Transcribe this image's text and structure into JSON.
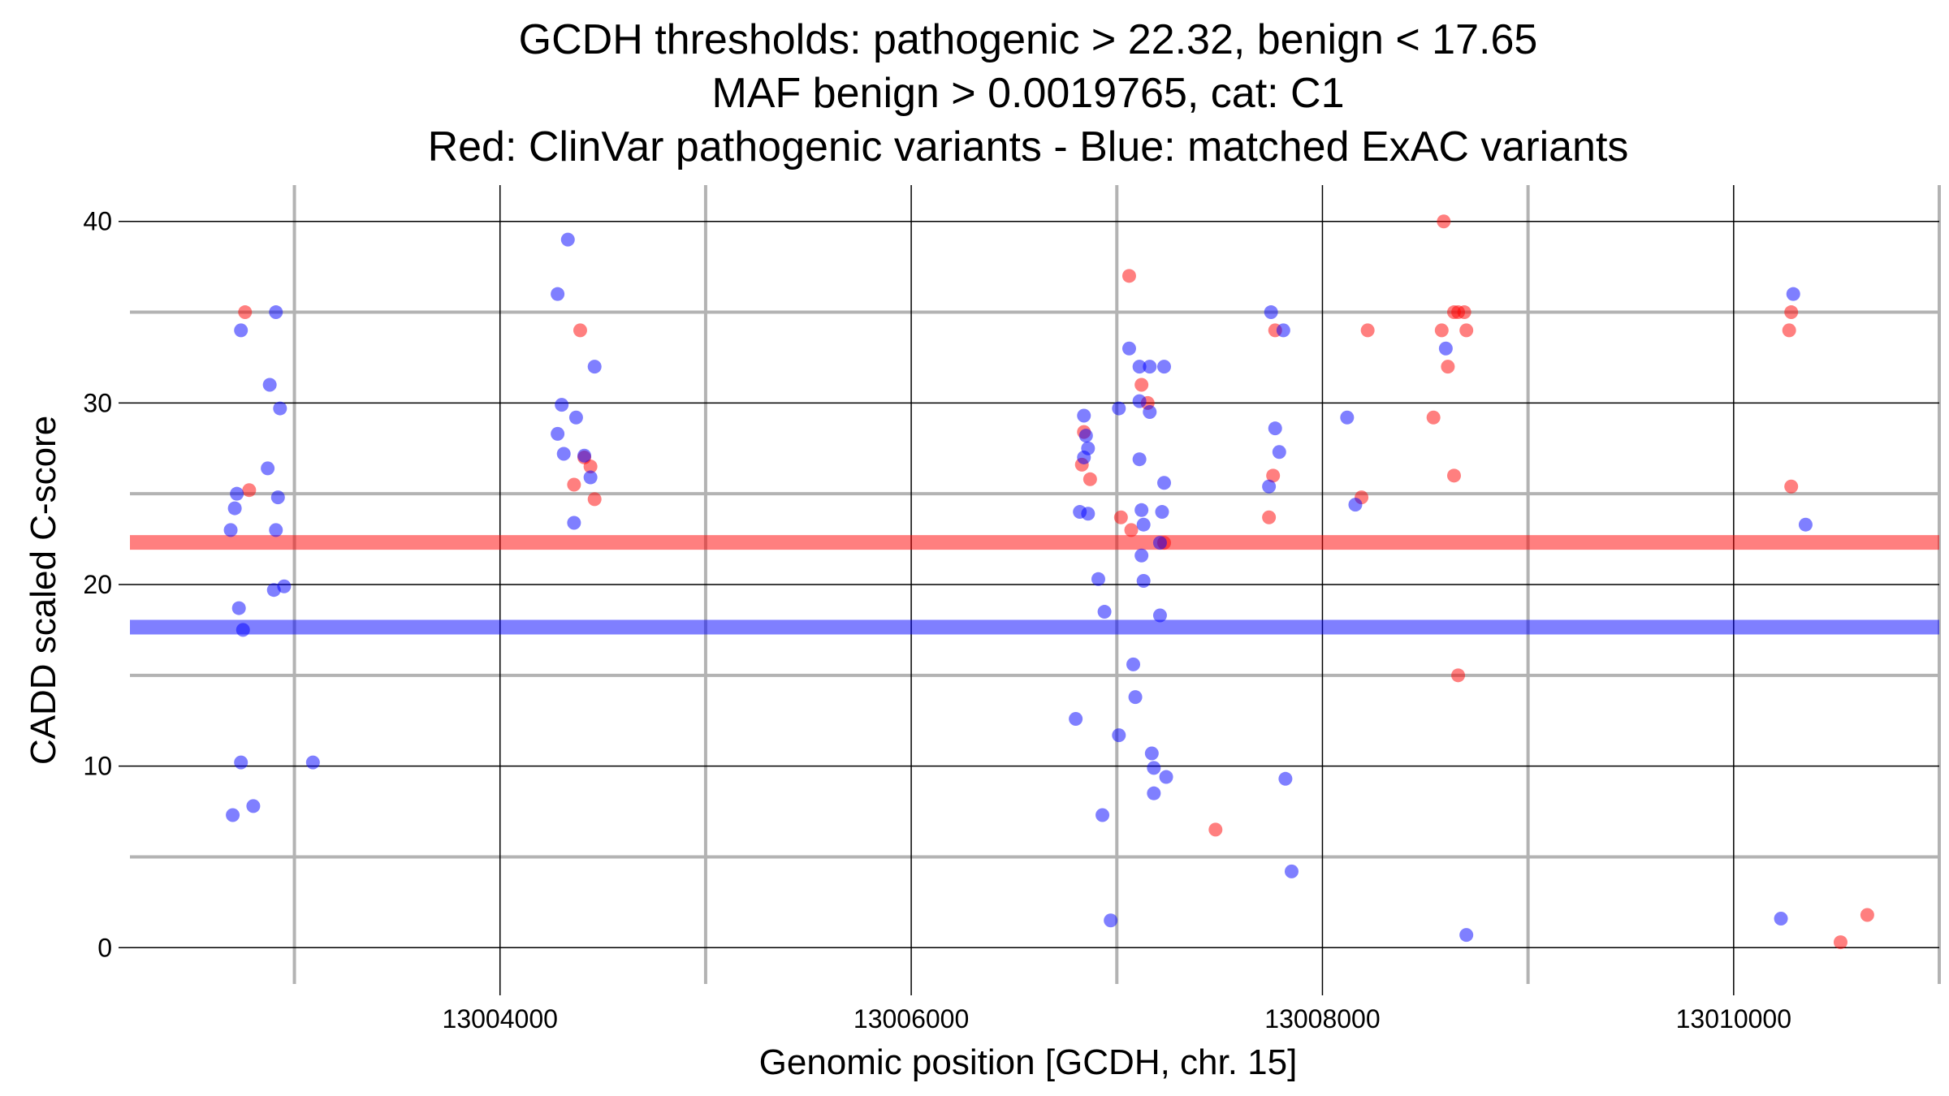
{
  "chart_data": {
    "type": "scatter",
    "title_lines": [
      "GCDH thresholds: pathogenic > 22.32, benign < 17.65",
      "MAF benign > 0.0019765, cat: C1",
      "Red: ClinVar pathogenic variants - Blue: matched ExAC variants"
    ],
    "xlabel": "Genomic position [GCDH, chr. 15]",
    "ylabel": "CADD scaled C-score",
    "xlim": [
      13002200,
      13011000
    ],
    "ylim": [
      -2.0,
      42.0
    ],
    "x_major_ticks": [
      13004000,
      13006000,
      13008000,
      13010000
    ],
    "x_tick_labels": [
      "13004000",
      "13006000",
      "13008000",
      "13010000"
    ],
    "x_minor_ticks": [
      13003000,
      13005000,
      13007000,
      13009000,
      13011000
    ],
    "y_major_ticks": [
      0,
      10,
      20,
      30,
      40
    ],
    "y_tick_labels": [
      "0",
      "10",
      "20",
      "30",
      "40"
    ],
    "y_minor_ticks": [
      5,
      15,
      25,
      35
    ],
    "grid": true,
    "thresholds": [
      {
        "name": "pathogenic",
        "value": 22.32,
        "color": "#ff0000"
      },
      {
        "name": "benign",
        "value": 17.65,
        "color": "#0000ff"
      }
    ],
    "series": [
      {
        "name": "ClinVar pathogenic variants",
        "color": "#ff0000",
        "points": [
          [
            13002760,
            35.0
          ],
          [
            13002780,
            25.2
          ],
          [
            13004390,
            34.0
          ],
          [
            13004360,
            25.5
          ],
          [
            13004410,
            27.0
          ],
          [
            13004440,
            26.5
          ],
          [
            13004460,
            24.7
          ],
          [
            13007060,
            37.0
          ],
          [
            13006840,
            28.4
          ],
          [
            13006830,
            26.6
          ],
          [
            13006870,
            25.8
          ],
          [
            13007020,
            23.7
          ],
          [
            13007070,
            23.0
          ],
          [
            13007120,
            31.0
          ],
          [
            13007150,
            30.0
          ],
          [
            13007230,
            22.3
          ],
          [
            13007480,
            6.5
          ],
          [
            13007740,
            23.7
          ],
          [
            13007760,
            26.0
          ],
          [
            13007770,
            34.0
          ],
          [
            13008190,
            24.8
          ],
          [
            13008220,
            34.0
          ],
          [
            13008540,
            29.2
          ],
          [
            13008580,
            34.0
          ],
          [
            13008590,
            40.0
          ],
          [
            13008610,
            32.0
          ],
          [
            13008640,
            35.0
          ],
          [
            13008660,
            35.0
          ],
          [
            13008690,
            35.0
          ],
          [
            13008700,
            34.0
          ],
          [
            13008640,
            26.0
          ],
          [
            13008660,
            15.0
          ],
          [
            13010280,
            35.0
          ],
          [
            13010270,
            34.0
          ],
          [
            13010280,
            25.4
          ],
          [
            13010520,
            0.3
          ],
          [
            13010650,
            1.8
          ]
        ]
      },
      {
        "name": "matched ExAC variants",
        "color": "#0000ff",
        "points": [
          [
            13002690,
            23.0
          ],
          [
            13002710,
            24.2
          ],
          [
            13002720,
            25.0
          ],
          [
            13002740,
            34.0
          ],
          [
            13002730,
            18.7
          ],
          [
            13002750,
            17.5
          ],
          [
            13002740,
            10.2
          ],
          [
            13002700,
            7.3
          ],
          [
            13002800,
            7.8
          ],
          [
            13002880,
            31.0
          ],
          [
            13002870,
            26.4
          ],
          [
            13002910,
            35.0
          ],
          [
            13002930,
            29.7
          ],
          [
            13002920,
            24.8
          ],
          [
            13002910,
            23.0
          ],
          [
            13002900,
            19.7
          ],
          [
            13002950,
            19.9
          ],
          [
            13003090,
            10.2
          ],
          [
            13004280,
            36.0
          ],
          [
            13004330,
            39.0
          ],
          [
            13004300,
            29.9
          ],
          [
            13004370,
            29.2
          ],
          [
            13004280,
            28.3
          ],
          [
            13004310,
            27.2
          ],
          [
            13004410,
            27.1
          ],
          [
            13004440,
            25.9
          ],
          [
            13004460,
            32.0
          ],
          [
            13004360,
            23.4
          ],
          [
            13006840,
            29.3
          ],
          [
            13006850,
            28.2
          ],
          [
            13006860,
            27.5
          ],
          [
            13006840,
            27.0
          ],
          [
            13006820,
            24.0
          ],
          [
            13006860,
            23.9
          ],
          [
            13006910,
            20.3
          ],
          [
            13006940,
            18.5
          ],
          [
            13006800,
            12.6
          ],
          [
            13006930,
            7.3
          ],
          [
            13006970,
            1.5
          ],
          [
            13007010,
            29.7
          ],
          [
            13007060,
            33.0
          ],
          [
            13007110,
            32.0
          ],
          [
            13007160,
            32.0
          ],
          [
            13007230,
            32.0
          ],
          [
            13007110,
            30.1
          ],
          [
            13007160,
            29.5
          ],
          [
            13007110,
            26.9
          ],
          [
            13007230,
            25.6
          ],
          [
            13007120,
            24.1
          ],
          [
            13007130,
            23.3
          ],
          [
            13007220,
            24.0
          ],
          [
            13007210,
            22.3
          ],
          [
            13007120,
            21.6
          ],
          [
            13007130,
            20.2
          ],
          [
            13007210,
            18.3
          ],
          [
            13007080,
            15.6
          ],
          [
            13007090,
            13.8
          ],
          [
            13007010,
            11.7
          ],
          [
            13007170,
            10.7
          ],
          [
            13007180,
            9.9
          ],
          [
            13007240,
            9.4
          ],
          [
            13007180,
            8.5
          ],
          [
            13007750,
            35.0
          ],
          [
            13007810,
            34.0
          ],
          [
            13007770,
            28.6
          ],
          [
            13007790,
            27.3
          ],
          [
            13007740,
            25.4
          ],
          [
            13007820,
            9.3
          ],
          [
            13007850,
            4.2
          ],
          [
            13008120,
            29.2
          ],
          [
            13008160,
            24.4
          ],
          [
            13008600,
            33.0
          ],
          [
            13008700,
            0.7
          ],
          [
            13010290,
            36.0
          ],
          [
            13010350,
            23.3
          ],
          [
            13010230,
            1.6
          ]
        ]
      }
    ]
  }
}
